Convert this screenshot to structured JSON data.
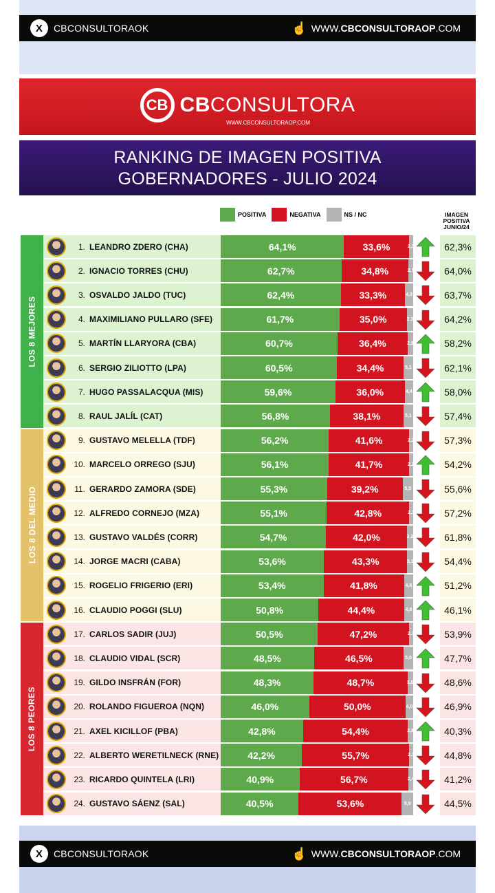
{
  "top_bar": {
    "handle": "CBCONSULTORAOK",
    "site_prefix": "WWW.",
    "site_bold": "CBCONSULTORAOP",
    "site_suffix": ".COM"
  },
  "brand": {
    "logo_mark": "CB",
    "name_bold": "CB",
    "name_rest": "CONSULTORA",
    "url": "WWW.CBCONSULTORAOP.COM"
  },
  "title": {
    "line1": "RANKING DE IMAGEN POSITIVA",
    "line2": "GOBERNADORES - JULIO 2024"
  },
  "legend": {
    "positiva": "POSITIVA",
    "negativa": "NEGATIVA",
    "nsnc": "NS / NC"
  },
  "junio_header": {
    "line1": "IMAGEN",
    "line2": "POSITIVA",
    "line3": "JUNIO/24"
  },
  "groups": [
    {
      "label": "LOS 8 MEJORES",
      "color": "#3fb34a",
      "row_bg": "#dcf2d1"
    },
    {
      "label": "LOS 8 DEL MEDIO",
      "color": "#e3c26a",
      "row_bg": "#fdf8e2"
    },
    {
      "label": "LOS 8 PEORES",
      "color": "#d8262e",
      "row_bg": "#fbe4e4"
    }
  ],
  "colors": {
    "positiva": "#5ea94b",
    "negativa": "#d1141f",
    "nsnc": "#b4b4b4",
    "arrow_up": "#3fbf32",
    "arrow_down": "#d7141d"
  },
  "chart_data": {
    "type": "bar",
    "stacked": true,
    "orientation": "horizontal",
    "title": "RANKING DE IMAGEN POSITIVA GOBERNADORES - JULIO 2024",
    "series_names": [
      "POSITIVA",
      "NEGATIVA",
      "NS / NC"
    ],
    "rows": [
      {
        "rank": "1.",
        "name": "LEANDRO ZDERO (CHA)",
        "positiva": 64.1,
        "positiva_label": "64,1%",
        "negativa": 33.6,
        "negativa_label": "33,6%",
        "nsnc": 2.3,
        "nsnc_label": "2,3",
        "trend": "up",
        "junio": "62,3%"
      },
      {
        "rank": "2.",
        "name": "IGNACIO TORRES (CHU)",
        "positiva": 62.7,
        "positiva_label": "62,7%",
        "negativa": 34.8,
        "negativa_label": "34,8%",
        "nsnc": 2.5,
        "nsnc_label": "2,5",
        "trend": "down",
        "junio": "64,0%"
      },
      {
        "rank": "3.",
        "name": "OSVALDO JALDO (TUC)",
        "positiva": 62.4,
        "positiva_label": "62,4%",
        "negativa": 33.3,
        "negativa_label": "33,3%",
        "nsnc": 4.3,
        "nsnc_label": "4,3",
        "trend": "down",
        "junio": "63,7%"
      },
      {
        "rank": "4.",
        "name": "MAXIMILIANO PULLARO (SFE)",
        "positiva": 61.7,
        "positiva_label": "61,7%",
        "negativa": 35.0,
        "negativa_label": "35,0%",
        "nsnc": 3.3,
        "nsnc_label": "3,3",
        "trend": "down",
        "junio": "64,2%"
      },
      {
        "rank": "5.",
        "name": "MARTÍN LLARYORA (CBA)",
        "positiva": 60.7,
        "positiva_label": "60,7%",
        "negativa": 36.4,
        "negativa_label": "36,4%",
        "nsnc": 2.9,
        "nsnc_label": "2,9",
        "trend": "up",
        "junio": "58,2%"
      },
      {
        "rank": "6.",
        "name": "SERGIO ZILIOTTO (LPA)",
        "positiva": 60.5,
        "positiva_label": "60,5%",
        "negativa": 34.4,
        "negativa_label": "34,4%",
        "nsnc": 5.1,
        "nsnc_label": "5,1",
        "trend": "down",
        "junio": "62,1%"
      },
      {
        "rank": "7.",
        "name": "HUGO PASSALACQUA (MIS)",
        "positiva": 59.6,
        "positiva_label": "59,6%",
        "negativa": 36.0,
        "negativa_label": "36,0%",
        "nsnc": 4.4,
        "nsnc_label": "4,4",
        "trend": "up",
        "junio": "58,0%"
      },
      {
        "rank": "8.",
        "name": "RAUL JALÍL (CAT)",
        "positiva": 56.8,
        "positiva_label": "56,8%",
        "negativa": 38.1,
        "negativa_label": "38,1%",
        "nsnc": 5.1,
        "nsnc_label": "5,1",
        "trend": "down",
        "junio": "57,4%"
      },
      {
        "rank": "9.",
        "name": "GUSTAVO MELELLA (TDF)",
        "positiva": 56.2,
        "positiva_label": "56,2%",
        "negativa": 41.6,
        "negativa_label": "41,6%",
        "nsnc": 2.2,
        "nsnc_label": "2,2",
        "trend": "down",
        "junio": "57,3%"
      },
      {
        "rank": "10.",
        "name": "MARCELO ORREGO (SJU)",
        "positiva": 56.1,
        "positiva_label": "56,1%",
        "negativa": 41.7,
        "negativa_label": "41,7%",
        "nsnc": 2.2,
        "nsnc_label": "2,2",
        "trend": "up",
        "junio": "54,2%"
      },
      {
        "rank": "11.",
        "name": "GERARDO ZAMORA (SDE)",
        "positiva": 55.3,
        "positiva_label": "55,3%",
        "negativa": 39.2,
        "negativa_label": "39,2%",
        "nsnc": 5.5,
        "nsnc_label": "5,5",
        "trend": "down",
        "junio": "55,6%"
      },
      {
        "rank": "12.",
        "name": "ALFREDO CORNEJO (MZA)",
        "positiva": 55.1,
        "positiva_label": "55,1%",
        "negativa": 42.8,
        "negativa_label": "42,8%",
        "nsnc": 2.1,
        "nsnc_label": "2,1",
        "trend": "down",
        "junio": "57,2%"
      },
      {
        "rank": "13.",
        "name": "GUSTAVO VALDÉS (CORR)",
        "positiva": 54.7,
        "positiva_label": "54,7%",
        "negativa": 42.0,
        "negativa_label": "42,0%",
        "nsnc": 3.3,
        "nsnc_label": "3,3",
        "trend": "down",
        "junio": "61,8%"
      },
      {
        "rank": "14.",
        "name": "JORGE MACRI (CABA)",
        "positiva": 53.6,
        "positiva_label": "53,6%",
        "negativa": 43.3,
        "negativa_label": "43,3%",
        "nsnc": 3.1,
        "nsnc_label": "3,1",
        "trend": "down",
        "junio": "54,4%"
      },
      {
        "rank": "15.",
        "name": "ROGELIO FRIGERIO (ERI)",
        "positiva": 53.4,
        "positiva_label": "53,4%",
        "negativa": 41.8,
        "negativa_label": "41,8%",
        "nsnc": 4.8,
        "nsnc_label": "4,8",
        "trend": "up",
        "junio": "51,2%"
      },
      {
        "rank": "16.",
        "name": "CLAUDIO POGGI (SLU)",
        "positiva": 50.8,
        "positiva_label": "50,8%",
        "negativa": 44.4,
        "negativa_label": "44,4%",
        "nsnc": 4.8,
        "nsnc_label": "4,8",
        "trend": "up",
        "junio": "46,1%"
      },
      {
        "rank": "17.",
        "name": "CARLOS SADIR (JUJ)",
        "positiva": 50.5,
        "positiva_label": "50,5%",
        "negativa": 47.2,
        "negativa_label": "47,2%",
        "nsnc": 2.3,
        "nsnc_label": "2,3",
        "trend": "down",
        "junio": "53,9%"
      },
      {
        "rank": "18.",
        "name": "CLAUDIO VIDAL (SCR)",
        "positiva": 48.5,
        "positiva_label": "48,5%",
        "negativa": 46.5,
        "negativa_label": "46,5%",
        "nsnc": 5.0,
        "nsnc_label": "5,0",
        "trend": "up",
        "junio": "47,7%"
      },
      {
        "rank": "19.",
        "name": "GILDO INSFRÁN (FOR)",
        "positiva": 48.3,
        "positiva_label": "48,3%",
        "negativa": 48.7,
        "negativa_label": "48,7%",
        "nsnc": 3.0,
        "nsnc_label": "3,0",
        "trend": "down",
        "junio": "48,6%"
      },
      {
        "rank": "20.",
        "name": "ROLANDO FIGUEROA (NQN)",
        "positiva": 46.0,
        "positiva_label": "46,0%",
        "negativa": 50.0,
        "negativa_label": "50,0%",
        "nsnc": 4.0,
        "nsnc_label": "4,0",
        "trend": "down",
        "junio": "46,9%"
      },
      {
        "rank": "21.",
        "name": "AXEL KICILLOF (PBA)",
        "positiva": 42.8,
        "positiva_label": "42,8%",
        "negativa": 54.4,
        "negativa_label": "54,4%",
        "nsnc": 2.8,
        "nsnc_label": "2,8",
        "trend": "up",
        "junio": "40,3%"
      },
      {
        "rank": "22.",
        "name": "ALBERTO WERETILNECK (RNE)",
        "positiva": 42.2,
        "positiva_label": "42,2%",
        "negativa": 55.7,
        "negativa_label": "55,7%",
        "nsnc": 2.1,
        "nsnc_label": "2,1",
        "trend": "down",
        "junio": "44,8%"
      },
      {
        "rank": "23.",
        "name": "RICARDO QUINTELA (LRI)",
        "positiva": 40.9,
        "positiva_label": "40,9%",
        "negativa": 56.7,
        "negativa_label": "56,7%",
        "nsnc": 2.4,
        "nsnc_label": "2,4",
        "trend": "down",
        "junio": "41,2%"
      },
      {
        "rank": "24.",
        "name": "GUSTAVO SÁENZ (SAL)",
        "positiva": 40.5,
        "positiva_label": "40,5%",
        "negativa": 53.6,
        "negativa_label": "53,6%",
        "nsnc": 5.9,
        "nsnc_label": "5,9",
        "trend": "down",
        "junio": "44,5%"
      }
    ]
  }
}
